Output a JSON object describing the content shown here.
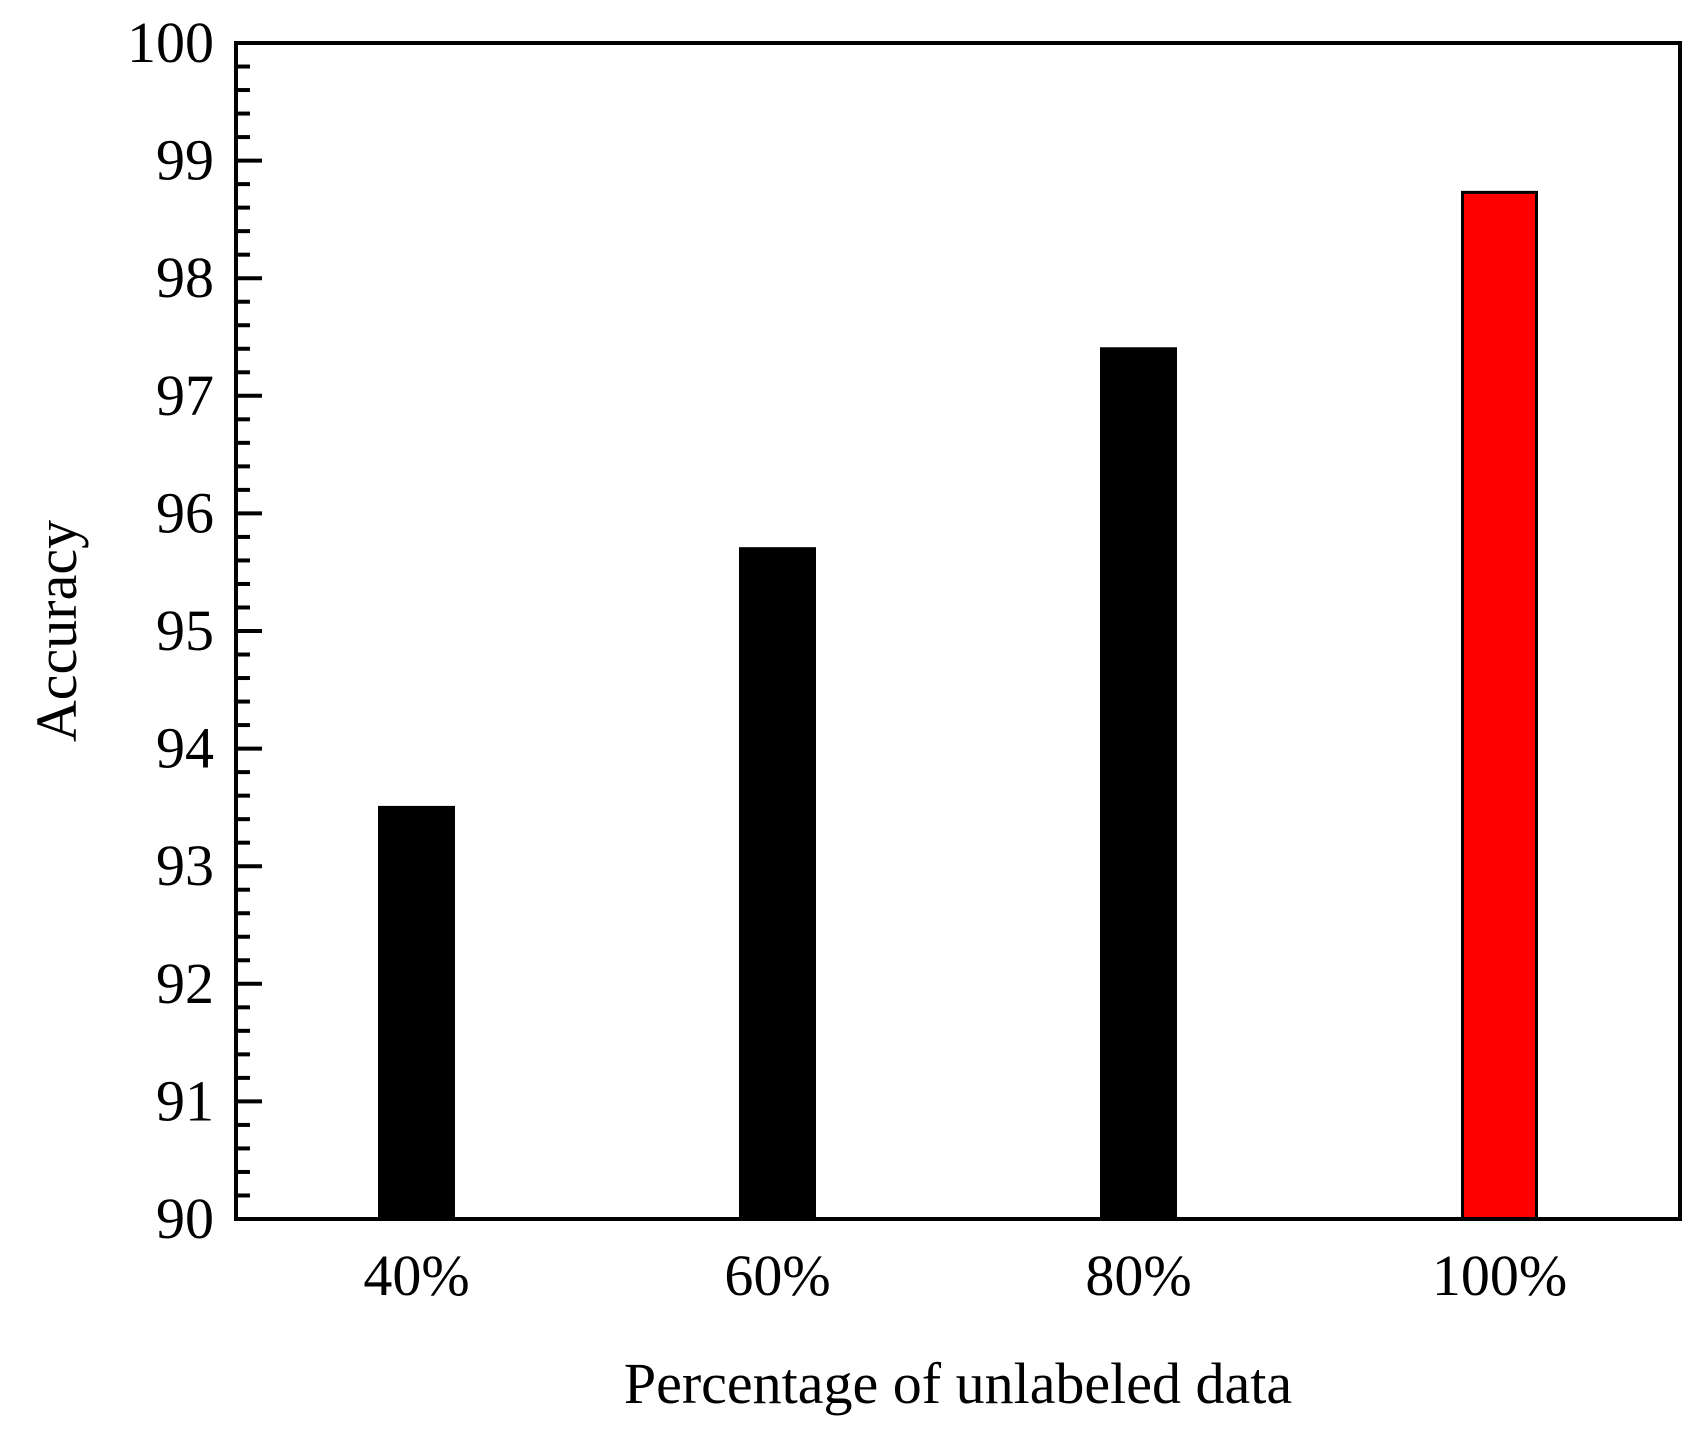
{
  "chart_data": {
    "type": "bar",
    "title": "",
    "xlabel": "Percentage of unlabeled data",
    "ylabel": "Accuracy",
    "categories": [
      "40%",
      "60%",
      "80%",
      "100%"
    ],
    "values": [
      93.5,
      95.7,
      97.4,
      98.73
    ],
    "bar_colors": [
      "#000000",
      "#000000",
      "#000000",
      "#ff0000"
    ],
    "ylim": [
      90,
      100
    ],
    "yticks": [
      "90",
      "91",
      "92",
      "93",
      "94",
      "95",
      "96",
      "97",
      "98",
      "99",
      "100"
    ],
    "y_minor_ticks_per_major": 5,
    "grid": false,
    "legend": "none"
  }
}
